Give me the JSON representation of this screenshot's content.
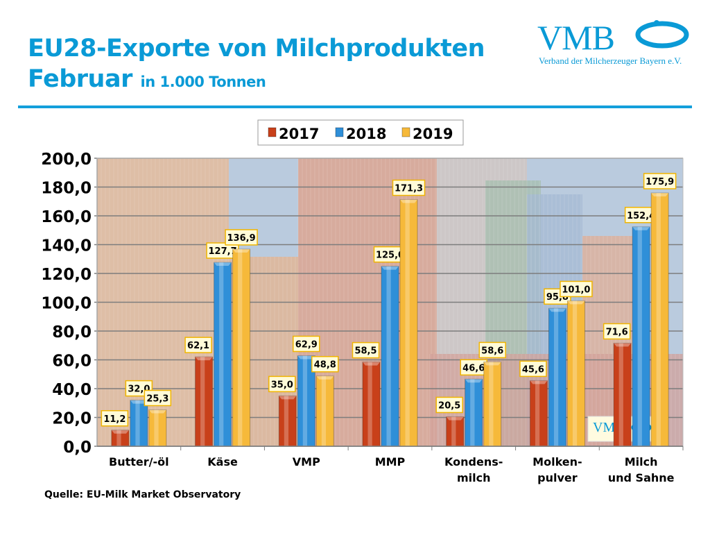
{
  "header": {
    "title_line1": "EU28-Exporte von Milchprodukten",
    "title_line2": "Februar",
    "unit": "in 1.000 Tonnen"
  },
  "logo": {
    "text": "VMB",
    "subtitle": "Verband der Milcherzeuger Bayern e.V."
  },
  "source": "Quelle: EU-Milk Market Observatory",
  "chart_data": {
    "type": "bar",
    "categories": [
      "Butter/-öl",
      "Käse",
      "VMP",
      "MMP",
      "Kondens-\nmilch",
      "Molken-\npulver",
      "Milch\nund Sahne"
    ],
    "series": [
      {
        "name": "2017",
        "color": "#c8401a",
        "values": [
          11.2,
          62.1,
          35.0,
          58.5,
          20.5,
          45.6,
          71.6
        ]
      },
      {
        "name": "2018",
        "color": "#2f8fd8",
        "values": [
          32.0,
          127.7,
          62.9,
          125.0,
          46.6,
          95.8,
          152.4
        ]
      },
      {
        "name": "2019",
        "color": "#f6b93a",
        "values": [
          25.3,
          136.9,
          48.8,
          171.3,
          58.6,
          101.0,
          175.9
        ]
      }
    ],
    "ylim": [
      0,
      200
    ],
    "yticks": [
      "0,0",
      "20,0",
      "40,0",
      "60,0",
      "80,0",
      "100,0",
      "120,0",
      "140,0",
      "160,0",
      "180,0",
      "200,0"
    ],
    "grid": true,
    "legend": "top",
    "data_labels": true
  }
}
